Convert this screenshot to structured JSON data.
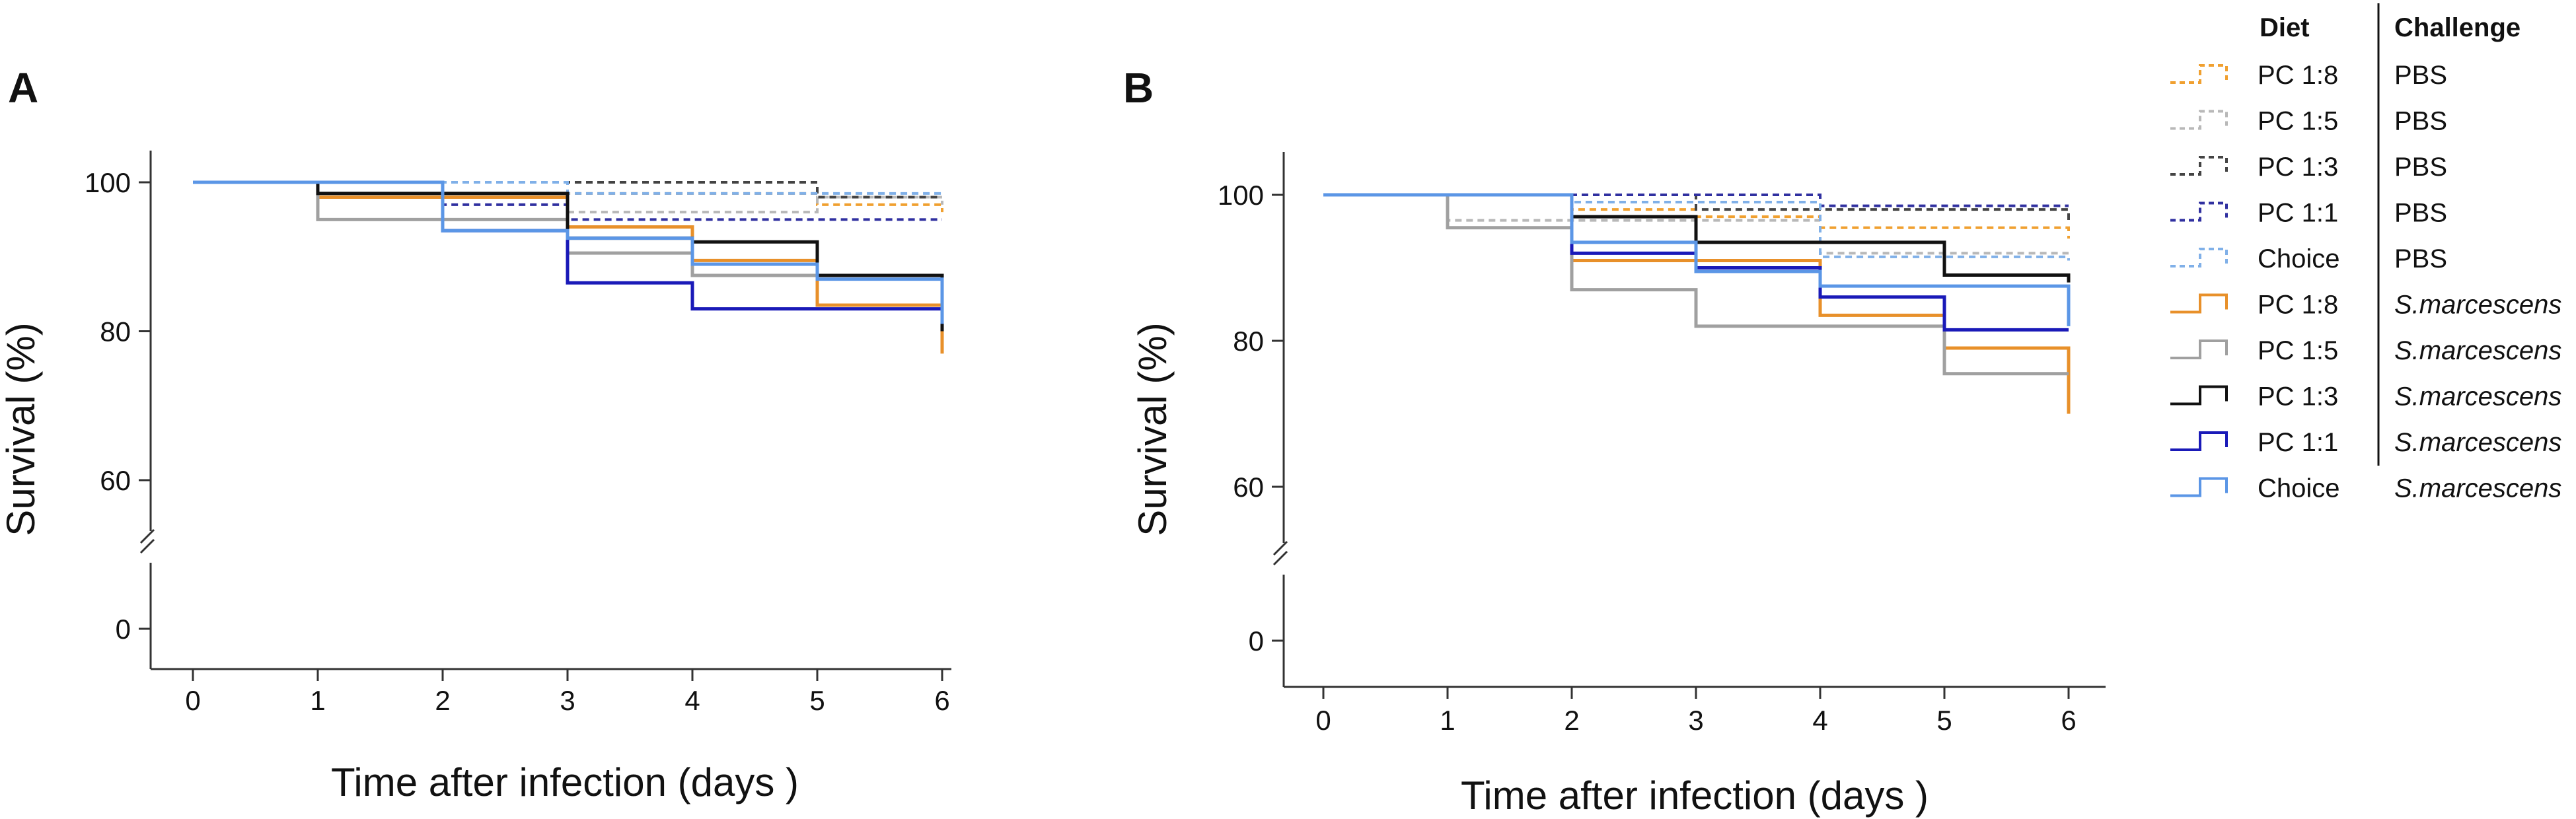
{
  "chart_data": [
    {
      "panel": "A",
      "type": "line",
      "step": true,
      "xlabel": "Time after infection (days )",
      "ylabel": "Survival (%)",
      "x_ticks": [
        0,
        1,
        2,
        3,
        4,
        5,
        6
      ],
      "y_ticks": [
        0,
        60,
        80,
        100
      ],
      "axis_break": "between 0 and 60",
      "x": [
        0,
        1,
        2,
        3,
        4,
        5,
        6
      ],
      "series": [
        {
          "name": "PC 1:8 / PBS",
          "color": "#f0a030",
          "dashed": true,
          "values": [
            100,
            100,
            100,
            98.5,
            98.5,
            97,
            96
          ]
        },
        {
          "name": "PC 1:5 / PBS",
          "color": "#b8b8b8",
          "dashed": true,
          "values": [
            100,
            100,
            100,
            96,
            96,
            98,
            97
          ]
        },
        {
          "name": "PC 1:3 / PBS",
          "color": "#444444",
          "dashed": true,
          "values": [
            100,
            100,
            100,
            100,
            100,
            98,
            98
          ]
        },
        {
          "name": "PC 1:1 / PBS",
          "color": "#3030a0",
          "dashed": true,
          "values": [
            100,
            100,
            97,
            95,
            95,
            95,
            95
          ]
        },
        {
          "name": "Choice / PBS",
          "color": "#80b0e8",
          "dashed": true,
          "values": [
            100,
            100,
            100,
            98.5,
            98.5,
            98.5,
            98.5
          ]
        },
        {
          "name": "PC 1:8 / S.marcescens",
          "color": "#e8902a",
          "dashed": false,
          "values": [
            100,
            98,
            98,
            94,
            89.5,
            83.5,
            77
          ]
        },
        {
          "name": "PC 1:5 / S.marcescens",
          "color": "#a0a0a0",
          "dashed": false,
          "values": [
            100,
            95,
            95,
            90.5,
            87.5,
            87.5,
            87.5
          ]
        },
        {
          "name": "PC 1:3 / S.marcescens",
          "color": "#111111",
          "dashed": false,
          "values": [
            100,
            98.5,
            98.5,
            92.5,
            92,
            87.5,
            80
          ]
        },
        {
          "name": "PC 1:1 / S.marcescens",
          "color": "#1a1ab8",
          "dashed": false,
          "values": [
            100,
            100,
            93.5,
            86.5,
            83,
            83,
            81
          ]
        },
        {
          "name": "Choice / S.marcescens",
          "color": "#5b96e6",
          "dashed": false,
          "values": [
            100,
            100,
            93.5,
            92.5,
            89,
            87,
            81
          ]
        }
      ]
    },
    {
      "panel": "B",
      "type": "line",
      "step": true,
      "xlabel": "Time after infection (days )",
      "ylabel": "Survival (%)",
      "x_ticks": [
        0,
        1,
        2,
        3,
        4,
        5,
        6
      ],
      "y_ticks": [
        0,
        60,
        80,
        100
      ],
      "axis_break": "between 0 and 60",
      "x": [
        0,
        1,
        2,
        3,
        4,
        5,
        6
      ],
      "series": [
        {
          "name": "PC 1:8 / PBS",
          "color": "#f0a030",
          "dashed": true,
          "values": [
            100,
            100,
            98,
            97,
            95.5,
            95.5,
            94
          ]
        },
        {
          "name": "PC 1:5 / PBS",
          "color": "#b8b8b8",
          "dashed": true,
          "values": [
            100,
            96.5,
            96.5,
            96.5,
            92,
            92,
            92
          ]
        },
        {
          "name": "PC 1:3 / PBS",
          "color": "#444444",
          "dashed": true,
          "values": [
            100,
            100,
            100,
            98,
            98,
            98,
            96
          ]
        },
        {
          "name": "PC 1:1 / PBS",
          "color": "#3030a0",
          "dashed": true,
          "values": [
            100,
            100,
            100,
            100,
            98.5,
            98.5,
            98.5
          ]
        },
        {
          "name": "Choice / PBS",
          "color": "#80b0e8",
          "dashed": true,
          "values": [
            100,
            100,
            99,
            99,
            91.5,
            91.5,
            91
          ]
        },
        {
          "name": "PC 1:8 / S.marcescens",
          "color": "#e8902a",
          "dashed": false,
          "values": [
            100,
            100,
            91,
            91,
            83.5,
            79,
            70
          ]
        },
        {
          "name": "PC 1:5 / S.marcescens",
          "color": "#a0a0a0",
          "dashed": false,
          "values": [
            100,
            95.5,
            87,
            82,
            82,
            75.5,
            75.5
          ]
        },
        {
          "name": "PC 1:3 / S.marcescens",
          "color": "#111111",
          "dashed": false,
          "values": [
            100,
            100,
            97,
            93.5,
            93.5,
            89,
            88
          ]
        },
        {
          "name": "PC 1:1 / S.marcescens",
          "color": "#1a1ab8",
          "dashed": false,
          "values": [
            100,
            100,
            92,
            90,
            86,
            81.5,
            81.5
          ]
        },
        {
          "name": "Choice / S.marcescens",
          "color": "#5b96e6",
          "dashed": false,
          "values": [
            100,
            100,
            93.5,
            89.5,
            87.5,
            87.5,
            82
          ]
        }
      ]
    }
  ],
  "panels": {
    "a_label": "A",
    "b_label": "B"
  },
  "legend": {
    "diet_header": "Diet",
    "challenge_header": "Challenge",
    "items": [
      {
        "diet": "PC 1:8",
        "challenge": "PBS",
        "italic": false
      },
      {
        "diet": "PC 1:5",
        "challenge": "PBS",
        "italic": false
      },
      {
        "diet": "PC 1:3",
        "challenge": "PBS",
        "italic": false
      },
      {
        "diet": "PC 1:1",
        "challenge": "PBS",
        "italic": false
      },
      {
        "diet": "Choice",
        "challenge": "PBS",
        "italic": false
      },
      {
        "diet": "PC 1:8",
        "challenge": "S.marcescens",
        "italic": true
      },
      {
        "diet": "PC 1:5",
        "challenge": "S.marcescens",
        "italic": true
      },
      {
        "diet": "PC 1:3",
        "challenge": "S.marcescens",
        "italic": true
      },
      {
        "diet": "PC 1:1",
        "challenge": "S.marcescens",
        "italic": true
      },
      {
        "diet": "Choice",
        "challenge": "S.marcescens",
        "italic": true
      }
    ]
  }
}
